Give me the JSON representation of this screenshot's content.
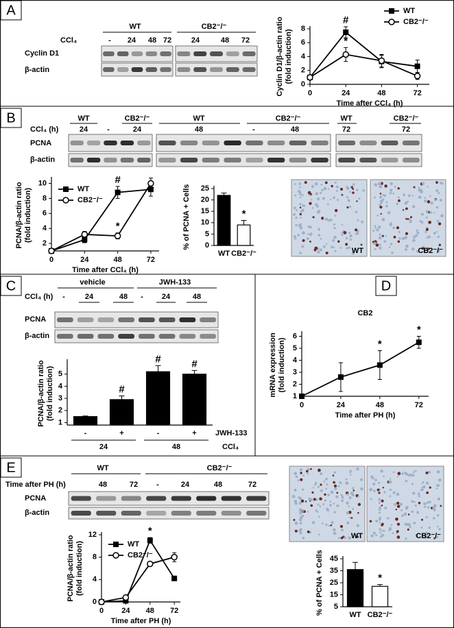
{
  "panel_letters": [
    "A",
    "B",
    "C",
    "D",
    "E"
  ],
  "blots": {
    "A": {
      "group_labels": [
        "WT",
        "CB2⁻/⁻"
      ],
      "treatment": "CCl₄",
      "lane_labels": [
        "-",
        "24",
        "48",
        "72",
        "24",
        "48",
        "72"
      ],
      "row_labels": [
        "Cyclin D1",
        "β-actin"
      ]
    },
    "B": {
      "group_labels": [
        "WT",
        "CB2⁻/⁻",
        "WT",
        "CB2⁻/⁻",
        "WT",
        "CB2⁻/⁻"
      ],
      "treatment": "CCl₄ (h)",
      "lane_labels": [
        "24",
        "-",
        "24",
        "48",
        "-",
        "48",
        "72",
        "72"
      ],
      "row_labels": [
        "PCNA",
        "β-actin"
      ]
    },
    "C": {
      "group_labels": [
        "vehicle",
        "JWH-133"
      ],
      "treatment": "CCl₄ (h)",
      "lane_labels": [
        "-",
        "24",
        "48",
        "-",
        "24",
        "48"
      ],
      "row_labels": [
        "PCNA",
        "β-actin"
      ]
    },
    "E": {
      "group_labels": [
        "WT",
        "CB2⁻/⁻"
      ],
      "treatment": "Time after PH (h)",
      "lane_labels": [
        "48",
        "72",
        "-",
        "24",
        "48",
        "72"
      ],
      "row_labels": [
        "PCNA",
        "β-actin"
      ]
    }
  },
  "micrograph_labels": {
    "B": [
      "WT",
      "CB2⁻/⁻"
    ],
    "E": [
      "WT",
      "CB2⁻/⁻"
    ]
  },
  "chart_data": [
    {
      "type": "line",
      "y_label": [
        "Cyclin D1/β-actin ratio",
        "(fold induction)"
      ],
      "x_label": "Time after CCl₄ (h)",
      "x": [
        0,
        24,
        48,
        72
      ],
      "xlim": [
        0,
        80
      ],
      "xticks": [
        0,
        24,
        48,
        72
      ],
      "ylim": [
        0,
        8
      ],
      "yticks": [
        0,
        2,
        4,
        6,
        8
      ],
      "legend": "upper right",
      "series": [
        {
          "name": "WT",
          "color": "#000000",
          "marker": "square",
          "values": [
            1,
            7.5,
            3.3,
            2.6
          ],
          "errors": [
            0,
            0.8,
            0.9,
            0.9
          ],
          "significance": [
            null,
            "#",
            null,
            null
          ]
        },
        {
          "name": "CB2⁻/⁻",
          "color": "#000000",
          "marker": "open circle",
          "values": [
            1,
            4.3,
            3.4,
            1.2
          ],
          "errors": [
            0,
            1,
            0.9,
            0.5
          ],
          "significance": [
            null,
            "*",
            null,
            null
          ]
        }
      ]
    },
    {
      "type": "line",
      "y_label": [
        "PCNA/β-actin ratio",
        "(fold induction)"
      ],
      "x_label": "Time after CCl₄ (h)",
      "x": [
        0,
        24,
        48,
        72
      ],
      "xlim": [
        0,
        78
      ],
      "xticks": [
        0,
        24,
        48,
        72
      ],
      "ylim": [
        1,
        10.5
      ],
      "yticks": [
        2,
        4,
        6,
        8,
        10
      ],
      "legend": "upper left",
      "series": [
        {
          "name": "WT",
          "color": "#000000",
          "marker": "square",
          "values": [
            1,
            2.5,
            8.8,
            9.2
          ],
          "errors": [
            0,
            0.4,
            0.8,
            0.9
          ],
          "significance": [
            null,
            null,
            "#",
            null
          ]
        },
        {
          "name": "CB2⁻/⁻",
          "color": "#000000",
          "marker": "open circle",
          "values": [
            1,
            3.2,
            3.0,
            10.0
          ],
          "errors": [
            0,
            0.4,
            0.4,
            0.7
          ],
          "significance": [
            null,
            null,
            "*",
            null
          ]
        }
      ]
    },
    {
      "type": "bar",
      "y_label": [
        "% of  PCNA + Cells"
      ],
      "categories": [
        "WT",
        "CB2⁻/⁻"
      ],
      "values": [
        22,
        9
      ],
      "errors": [
        1,
        2
      ],
      "colors": [
        "#000000",
        "#ffffff"
      ],
      "significance": [
        null,
        "*"
      ],
      "ylim": [
        0,
        25
      ],
      "yticks": [
        0,
        5,
        10,
        15,
        20,
        25
      ]
    },
    {
      "type": "bar",
      "y_label": [
        "PCNA/β-actin ratio",
        "(fold induction)"
      ],
      "categories": [
        "-",
        "+",
        "-",
        "+"
      ],
      "values": [
        1.5,
        2.9,
        5.2,
        5.0
      ],
      "errors": [
        0.05,
        0.3,
        0.5,
        0.3
      ],
      "color": "#000000",
      "significance": [
        null,
        "#",
        "#",
        "#"
      ],
      "ylim": [
        0.8,
        6
      ],
      "yticks": [
        1,
        2,
        3,
        4,
        5
      ],
      "row_label": "JWH-133",
      "groups": [
        "24",
        "48"
      ],
      "group_label": "CCl₄"
    },
    {
      "type": "line",
      "title": "CB2",
      "y_label": [
        "mRNA expression",
        "(fold induction)"
      ],
      "x_label": "Time after PH (h)",
      "x": [
        0,
        24,
        48,
        72
      ],
      "xlim": [
        0,
        78
      ],
      "xticks": [
        0,
        24,
        48,
        72
      ],
      "ylim": [
        1,
        6.2
      ],
      "yticks": [
        1,
        2,
        3,
        4,
        5,
        6
      ],
      "series": [
        {
          "color": "#000000",
          "marker": "square",
          "values": [
            1,
            2.6,
            3.6,
            5.5
          ],
          "errors": [
            0,
            1.2,
            1.2,
            0.5
          ],
          "significance": [
            null,
            null,
            "*",
            "*"
          ]
        }
      ]
    },
    {
      "type": "line",
      "y_label": [
        "PCNA/β-actin ratio",
        "(fold induction)"
      ],
      "x_label": "Time after PH (h)",
      "x": [
        0,
        24,
        48,
        72
      ],
      "xlim": [
        0,
        78
      ],
      "xticks": [
        0,
        24,
        48,
        72
      ],
      "ylim": [
        0,
        12
      ],
      "yticks": [
        0,
        4,
        8,
        12
      ],
      "legend": "upper left",
      "series": [
        {
          "name": "WT",
          "color": "#000000",
          "marker": "square",
          "values": [
            0,
            0.2,
            11,
            4.2
          ],
          "errors": [
            0,
            0.2,
            0.5,
            0.4
          ],
          "significance": [
            null,
            null,
            "*",
            null
          ]
        },
        {
          "name": "CB2⁻/⁻",
          "color": "#000000",
          "marker": "open circle",
          "values": [
            0,
            0.8,
            6.8,
            8
          ],
          "errors": [
            0,
            0.2,
            0.3,
            0.8
          ]
        }
      ]
    },
    {
      "type": "bar",
      "y_label": [
        "% of  PCNA + Cells"
      ],
      "categories": [
        "WT",
        "CB2⁻/⁻"
      ],
      "values": [
        36,
        22
      ],
      "errors": [
        6,
        1.5
      ],
      "colors": [
        "#000000",
        "#ffffff"
      ],
      "significance": [
        null,
        "*"
      ],
      "ylim": [
        5,
        45
      ],
      "yticks": [
        5,
        15,
        25,
        35,
        45
      ]
    }
  ]
}
